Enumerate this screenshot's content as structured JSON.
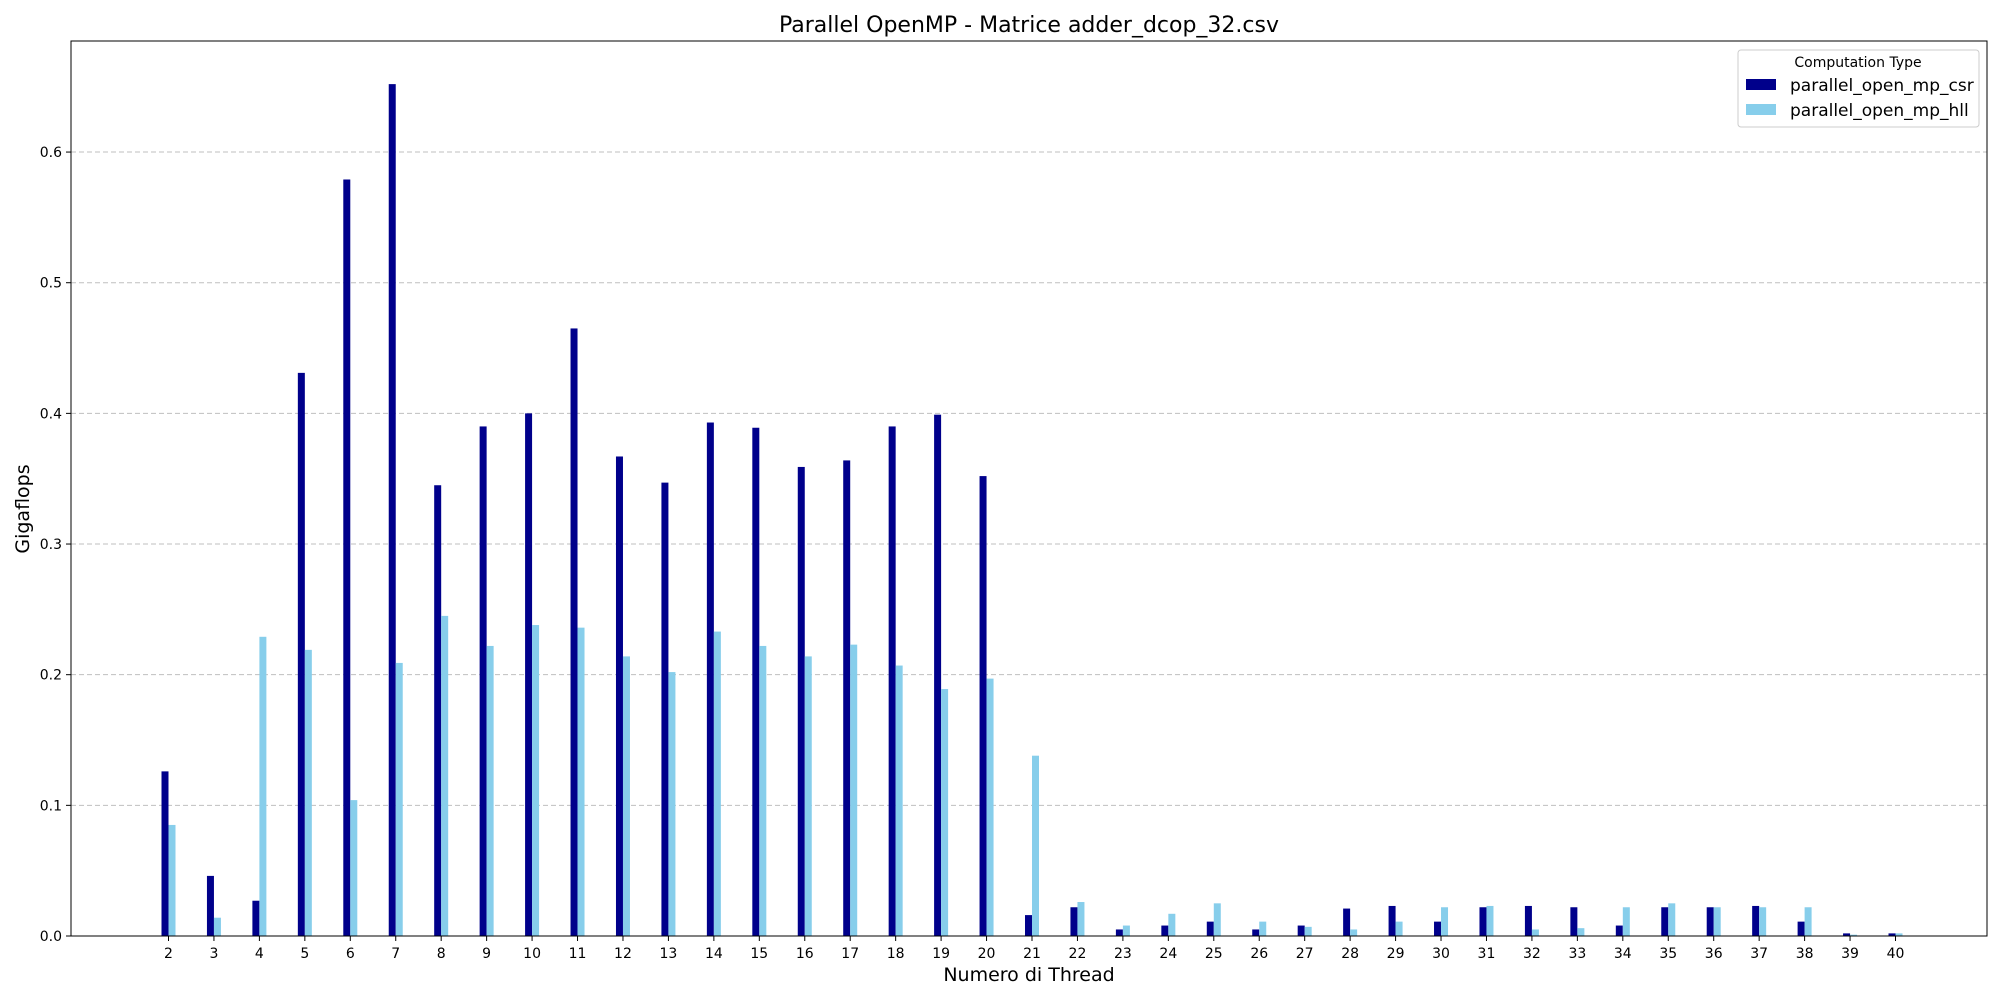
{
  "chart_data": {
    "type": "bar",
    "title": "Parallel OpenMP - Matrice adder_dcop_32.csv",
    "xlabel": "Numero di Thread",
    "ylabel": "Gigaflops",
    "ylim": [
      0,
      0.685
    ],
    "yticks": [
      0.0,
      0.1,
      0.2,
      0.3,
      0.4,
      0.5,
      0.6
    ],
    "ytick_labels": [
      "0.0",
      "0.1",
      "0.2",
      "0.3",
      "0.4",
      "0.5",
      "0.6"
    ],
    "grid": "y-dashed",
    "legend": {
      "title": "Computation Type",
      "placement": "top-right"
    },
    "categories": [
      "2",
      "3",
      "4",
      "5",
      "6",
      "7",
      "8",
      "9",
      "10",
      "11",
      "12",
      "13",
      "14",
      "15",
      "16",
      "17",
      "18",
      "19",
      "20",
      "21",
      "22",
      "23",
      "24",
      "25",
      "26",
      "27",
      "28",
      "29",
      "30",
      "31",
      "32",
      "33",
      "34",
      "35",
      "36",
      "37",
      "38",
      "39",
      "40"
    ],
    "series": [
      {
        "name": "parallel_open_mp_csr",
        "color": "#00008b",
        "values": [
          0.126,
          0.046,
          0.027,
          0.431,
          0.579,
          0.652,
          0.345,
          0.39,
          0.4,
          0.465,
          0.367,
          0.347,
          0.393,
          0.389,
          0.359,
          0.364,
          0.39,
          0.399,
          0.352,
          0.016,
          0.022,
          0.005,
          0.008,
          0.011,
          0.005,
          0.008,
          0.021,
          0.023,
          0.011,
          0.022,
          0.023,
          0.022,
          0.008,
          0.022,
          0.022,
          0.023,
          0.011,
          0.002,
          0.002
        ]
      },
      {
        "name": "parallel_open_mp_hll",
        "color": "#87ceeb",
        "values": [
          0.085,
          0.014,
          0.229,
          0.219,
          0.104,
          0.209,
          0.245,
          0.222,
          0.238,
          0.236,
          0.214,
          0.202,
          0.233,
          0.222,
          0.214,
          0.223,
          0.207,
          0.189,
          0.197,
          0.138,
          0.026,
          0.008,
          0.017,
          0.025,
          0.011,
          0.007,
          0.005,
          0.011,
          0.022,
          0.023,
          0.005,
          0.006,
          0.022,
          0.025,
          0.022,
          0.022,
          0.022,
          0.001,
          0.002
        ]
      }
    ]
  }
}
